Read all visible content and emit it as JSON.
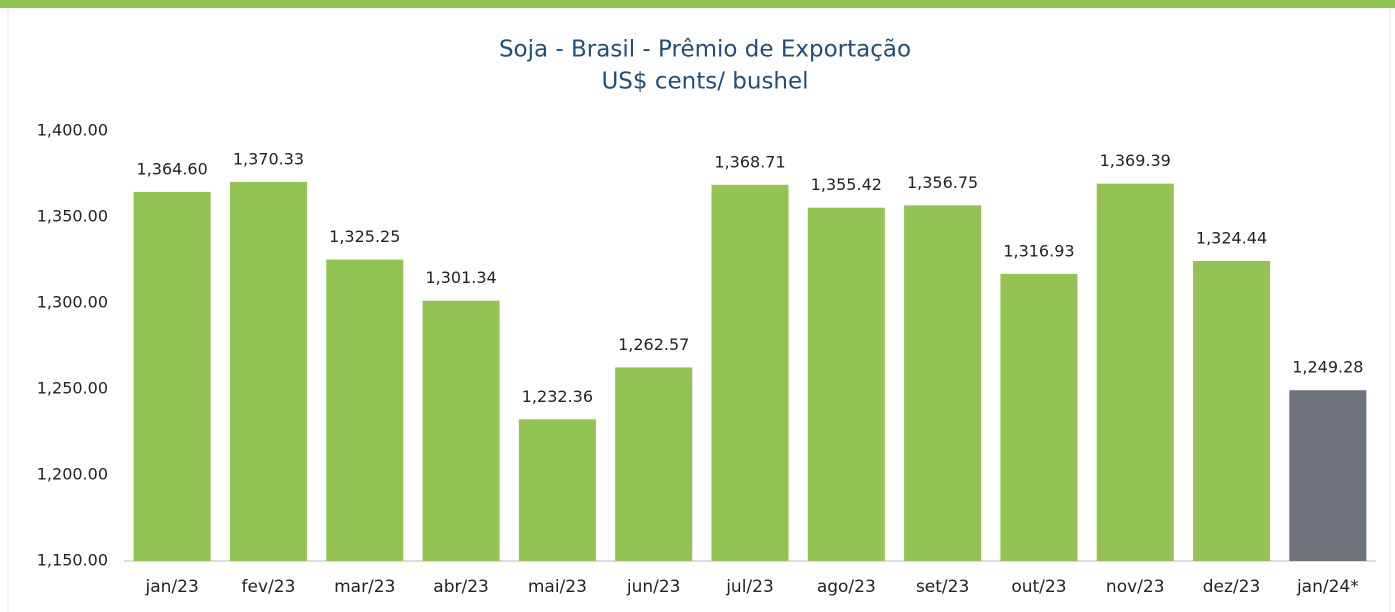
{
  "chart_data": {
    "type": "bar",
    "title": "Soja - Brasil - Prêmio de Exportação",
    "subtitle": "US$ cents/ bushel",
    "categories": [
      "jan/23",
      "fev/23",
      "mar/23",
      "abr/23",
      "mai/23",
      "jun/23",
      "jul/23",
      "ago/23",
      "set/23",
      "out/23",
      "nov/23",
      "dez/23",
      "jan/24*"
    ],
    "values": [
      1364.6,
      1370.33,
      1325.25,
      1301.34,
      1232.36,
      1262.57,
      1368.71,
      1355.42,
      1356.75,
      1316.93,
      1369.39,
      1324.44,
      1249.28
    ],
    "value_labels": [
      "1,364.60",
      "1,370.33",
      "1,325.25",
      "1,301.34",
      "1,232.36",
      "1,262.57",
      "1,368.71",
      "1,355.42",
      "1,356.75",
      "1,316.93",
      "1,369.39",
      "1,324.44",
      "1,249.28"
    ],
    "colors": [
      "#92c353",
      "#92c353",
      "#92c353",
      "#92c353",
      "#92c353",
      "#92c353",
      "#92c353",
      "#92c353",
      "#92c353",
      "#92c353",
      "#92c353",
      "#92c353",
      "#6d727c"
    ],
    "ylim": [
      1150,
      1400
    ],
    "yticks": [
      {
        "value": 1150,
        "label": "1,150.00"
      },
      {
        "value": 1200,
        "label": "1,200.00"
      },
      {
        "value": 1250,
        "label": "1,250.00"
      },
      {
        "value": 1300,
        "label": "1,300.00"
      },
      {
        "value": 1350,
        "label": "1,350.00"
      },
      {
        "value": 1400,
        "label": "1,400.00"
      }
    ],
    "grid": false
  }
}
